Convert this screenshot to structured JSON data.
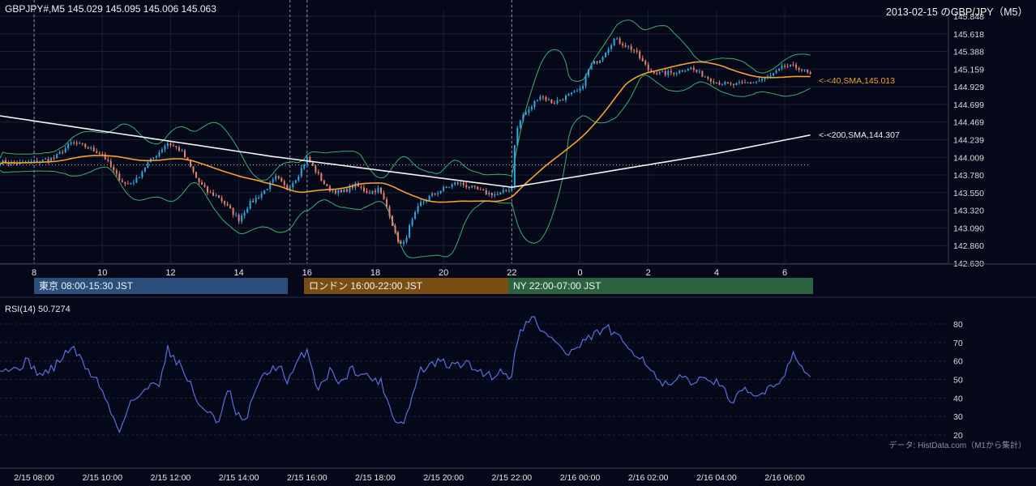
{
  "header": {
    "symbol_ohlc": "GBPJPY#,M5 145.029 145.095 145.006 145.063",
    "title": "2013-02-15 のGBP/JPY（M5）"
  },
  "sessions": {
    "tokyo": "東京 08:00-15:30 JST",
    "london": "ロンドン 16:00-22:00 JST",
    "ny": "NY 22:00-07:00 JST"
  },
  "rsi": {
    "label": "RSI(14) 50.7274"
  },
  "credit": "データ: HistData.com（M1から集計）",
  "colors": {
    "background": "#050818",
    "candle_up": "#2fa8e0",
    "candle_down": "#e8806a",
    "sma40": "#f5a030",
    "sma200": "#f2f2f2",
    "bollinger": "#3fae6a",
    "rsi_line": "#5a6ee0"
  },
  "chart_data": [
    {
      "type": "candlestick",
      "symbol": "GBPJPY#",
      "timeframe": "M5",
      "ylim": [
        142.63,
        145.848
      ],
      "y_ticks": [
        142.63,
        142.86,
        143.09,
        143.32,
        143.55,
        143.78,
        144.009,
        144.239,
        144.469,
        144.699,
        144.929,
        145.159,
        145.388,
        145.618,
        145.848
      ],
      "x_tick_labels": [
        "8",
        "10",
        "12",
        "14",
        "16",
        "18",
        "20",
        "22",
        "0",
        "2",
        "4",
        "6"
      ],
      "x_tick_hours": [
        8,
        10,
        12,
        14,
        16,
        18,
        20,
        22,
        24,
        26,
        28,
        30
      ],
      "xlim_hours": [
        7.0,
        30.83
      ],
      "session_markers_hours": [
        8.0,
        15.5,
        16.0,
        22.0,
        31.0
      ],
      "reference_level": 143.91,
      "close_keypoints": [
        [
          7.0,
          143.95
        ],
        [
          7.5,
          143.93
        ],
        [
          8.0,
          143.95
        ],
        [
          8.6,
          144.0
        ],
        [
          9.1,
          144.2
        ],
        [
          9.5,
          144.15
        ],
        [
          10.0,
          144.05
        ],
        [
          10.4,
          143.78
        ],
        [
          10.7,
          143.65
        ],
        [
          11.0,
          143.72
        ],
        [
          11.3,
          143.92
        ],
        [
          11.6,
          144.05
        ],
        [
          11.9,
          144.2
        ],
        [
          12.3,
          144.1
        ],
        [
          12.5,
          143.95
        ],
        [
          12.8,
          143.7
        ],
        [
          13.1,
          143.55
        ],
        [
          13.4,
          143.5
        ],
        [
          13.8,
          143.3
        ],
        [
          14.0,
          143.2
        ],
        [
          14.3,
          143.4
        ],
        [
          14.7,
          143.55
        ],
        [
          15.1,
          143.75
        ],
        [
          15.4,
          143.6
        ],
        [
          15.7,
          143.75
        ],
        [
          16.0,
          144.0
        ],
        [
          16.3,
          143.8
        ],
        [
          16.6,
          143.6
        ],
        [
          17.0,
          143.55
        ],
        [
          17.4,
          143.65
        ],
        [
          17.8,
          143.55
        ],
        [
          18.1,
          143.6
        ],
        [
          18.4,
          143.3
        ],
        [
          18.6,
          142.98
        ],
        [
          18.8,
          142.84
        ],
        [
          19.0,
          143.1
        ],
        [
          19.3,
          143.4
        ],
        [
          19.6,
          143.5
        ],
        [
          20.0,
          143.6
        ],
        [
          20.4,
          143.68
        ],
        [
          20.8,
          143.62
        ],
        [
          21.2,
          143.55
        ],
        [
          21.6,
          143.52
        ],
        [
          22.0,
          143.62
        ],
        [
          22.1,
          144.3
        ],
        [
          22.3,
          144.55
        ],
        [
          22.5,
          144.62
        ],
        [
          22.8,
          144.82
        ],
        [
          23.2,
          144.72
        ],
        [
          23.6,
          144.8
        ],
        [
          24.0,
          144.88
        ],
        [
          24.3,
          145.2
        ],
        [
          24.6,
          145.3
        ],
        [
          25.0,
          145.55
        ],
        [
          25.3,
          145.48
        ],
        [
          25.6,
          145.4
        ],
        [
          26.0,
          145.15
        ],
        [
          26.4,
          145.1
        ],
        [
          26.8,
          145.12
        ],
        [
          27.2,
          145.18
        ],
        [
          27.6,
          145.08
        ],
        [
          28.0,
          144.99
        ],
        [
          28.4,
          144.95
        ],
        [
          28.8,
          144.97
        ],
        [
          29.2,
          145.0
        ],
        [
          29.6,
          145.07
        ],
        [
          30.0,
          145.2
        ],
        [
          30.4,
          145.18
        ],
        [
          30.83,
          145.063
        ]
      ],
      "series": [
        {
          "name": "40,SMA",
          "last_value": 145.013,
          "label": "<-<40,SMA,145.013"
        },
        {
          "name": "200,SMA",
          "last_value": 144.307,
          "label": "<-<200,SMA,144.307"
        },
        {
          "name": "Bollinger"
        }
      ],
      "sma200_keypoints": [
        [
          7.0,
          144.55
        ],
        [
          15.0,
          144.02
        ],
        [
          22.0,
          143.62
        ],
        [
          25.0,
          143.84
        ],
        [
          28.0,
          144.06
        ],
        [
          30.83,
          144.307
        ]
      ],
      "bollinger_bands": "close ± 0.14 to 0.6 (widens after 22:00 break)",
      "grid": true
    },
    {
      "type": "line",
      "name": "RSI(14)",
      "last_value": 50.7274,
      "ylim": [
        20,
        80
      ],
      "y_ticks": [
        20,
        30,
        40,
        50,
        60,
        70,
        80
      ],
      "x_tick_labels": [
        "2/15 08:00",
        "2/15 10:00",
        "2/15 12:00",
        "2/15 14:00",
        "2/15 16:00",
        "2/15 18:00",
        "2/15 20:00",
        "2/15 22:00",
        "2/16 00:00",
        "2/16 02:00",
        "2/16 04:00",
        "2/16 06:00"
      ],
      "keypoints": [
        [
          7.0,
          57
        ],
        [
          7.4,
          55
        ],
        [
          7.8,
          60
        ],
        [
          8.2,
          52
        ],
        [
          8.6,
          57
        ],
        [
          9.1,
          68
        ],
        [
          9.5,
          57
        ],
        [
          9.9,
          48
        ],
        [
          10.3,
          30
        ],
        [
          10.5,
          22
        ],
        [
          10.8,
          38
        ],
        [
          11.2,
          42
        ],
        [
          11.5,
          50
        ],
        [
          11.7,
          48
        ],
        [
          11.9,
          67
        ],
        [
          12.3,
          57
        ],
        [
          12.6,
          47
        ],
        [
          12.9,
          33
        ],
        [
          13.2,
          33
        ],
        [
          13.4,
          26
        ],
        [
          13.7,
          45
        ],
        [
          13.9,
          32
        ],
        [
          14.2,
          26
        ],
        [
          14.5,
          46
        ],
        [
          14.9,
          55
        ],
        [
          15.2,
          58
        ],
        [
          15.4,
          47
        ],
        [
          15.8,
          62
        ],
        [
          16.0,
          66
        ],
        [
          16.3,
          45
        ],
        [
          16.7,
          55
        ],
        [
          17.0,
          48
        ],
        [
          17.3,
          56
        ],
        [
          17.7,
          52
        ],
        [
          18.0,
          50
        ],
        [
          18.2,
          48
        ],
        [
          18.4,
          36
        ],
        [
          18.6,
          28
        ],
        [
          18.8,
          26
        ],
        [
          19.0,
          35
        ],
        [
          19.3,
          55
        ],
        [
          19.6,
          57
        ],
        [
          19.9,
          60
        ],
        [
          20.2,
          57
        ],
        [
          20.6,
          59
        ],
        [
          21.0,
          55
        ],
        [
          21.4,
          52
        ],
        [
          21.8,
          55
        ],
        [
          22.0,
          50
        ],
        [
          22.1,
          70
        ],
        [
          22.4,
          80
        ],
        [
          22.6,
          86
        ],
        [
          22.8,
          76
        ],
        [
          23.2,
          73
        ],
        [
          23.6,
          63
        ],
        [
          24.0,
          68
        ],
        [
          24.4,
          74
        ],
        [
          24.8,
          78
        ],
        [
          25.0,
          74
        ],
        [
          25.4,
          68
        ],
        [
          25.8,
          62
        ],
        [
          26.0,
          58
        ],
        [
          26.3,
          48
        ],
        [
          26.7,
          46
        ],
        [
          27.0,
          52
        ],
        [
          27.4,
          48
        ],
        [
          27.8,
          52
        ],
        [
          28.2,
          44
        ],
        [
          28.5,
          38
        ],
        [
          28.8,
          44
        ],
        [
          29.2,
          40
        ],
        [
          29.6,
          48
        ],
        [
          29.9,
          48
        ],
        [
          30.1,
          60
        ],
        [
          30.3,
          65
        ],
        [
          30.5,
          55
        ],
        [
          30.83,
          50.7
        ]
      ],
      "grid": true
    }
  ]
}
